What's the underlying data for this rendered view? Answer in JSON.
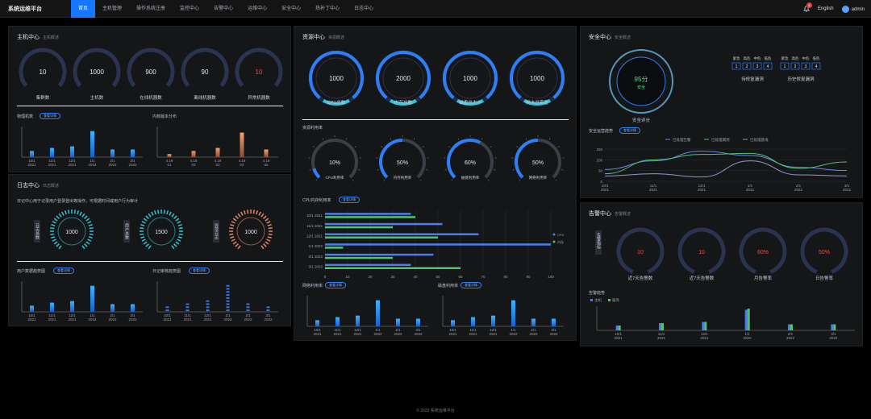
{
  "header": {
    "title": "系统运维平台",
    "nav": [
      "首页",
      "主机管理",
      "操作系统注册",
      "监控中心",
      "告警中心",
      "运维中心",
      "安全中心",
      "热补丁中心",
      "日志中心"
    ],
    "active": 0,
    "notif_count": "6",
    "lang": "English",
    "user": "admin"
  },
  "host": {
    "title": "主机中心",
    "subtitle": "主机概述",
    "gauges": [
      {
        "value": "10",
        "label": "集群数",
        "color": "#dfe6f0"
      },
      {
        "value": "1000",
        "label": "主机数",
        "color": "#dfe6f0"
      },
      {
        "value": "900",
        "label": "在线机器数",
        "color": "#dfe6f0"
      },
      {
        "value": "90",
        "label": "离线机器数",
        "color": "#dfe6f0"
      },
      {
        "value": "10",
        "label": "异常机器数",
        "color": "#e0524e"
      }
    ],
    "phys_title": "物理机数",
    "phys_btn": "查看详情",
    "kernel_title": "内核版本分布",
    "phys_x": [
      [
        "10/1",
        "2021"
      ],
      [
        "11/1",
        "2021"
      ],
      [
        "12/1",
        "2021"
      ],
      [
        "1/1",
        "2022"
      ],
      [
        "2/1",
        "2022"
      ],
      [
        "3/1",
        "2022"
      ]
    ],
    "phys_v": [
      20,
      30,
      35,
      85,
      25,
      25
    ],
    "kernel_x": [
      [
        "4.19",
        "01"
      ],
      [
        "4.19",
        "02"
      ],
      [
        "4.19",
        "03"
      ],
      [
        "4.19",
        "04"
      ],
      [
        "4.19",
        "05"
      ]
    ],
    "kernel_v": [
      10,
      20,
      30,
      80,
      25
    ]
  },
  "log": {
    "title": "日志中心",
    "subtitle": "日志概述",
    "desc": "日记中心用于记录用户登录登出等操作，可根据时间或用户行为审计",
    "rings": [
      {
        "label": "日志总数",
        "value": "1000",
        "color": "#33c4d8"
      },
      {
        "label": "用户总数",
        "value": "1500",
        "color": "#33c4d8"
      },
      {
        "label": "异常日志",
        "value": "1000",
        "color": "#e8886a"
      }
    ],
    "trend_title": "用户数据趋势图",
    "trend_btn": "查看详情",
    "audit_title": "日记审核趋势图",
    "audit_btn": "查看详情",
    "trend_x": [
      [
        "10/1",
        "2021"
      ],
      [
        "11/1",
        "2021"
      ],
      [
        "12/1",
        "2021"
      ],
      [
        "1/1",
        "2022"
      ],
      [
        "2/1",
        "2022"
      ],
      [
        "3/1",
        "2022"
      ]
    ],
    "trend_v": [
      20,
      30,
      35,
      85,
      25,
      25
    ],
    "audit_x": [
      [
        "10/1",
        "2021"
      ],
      [
        "11/1",
        "2021"
      ],
      [
        "12/1",
        "2021"
      ],
      [
        "1/1",
        "2022"
      ],
      [
        "2/1",
        "2022"
      ],
      [
        "3/1",
        "2022"
      ]
    ],
    "audit_v": [
      2,
      3,
      4,
      9,
      3,
      2
    ]
  },
  "resource": {
    "title": "资源中心",
    "subtitle": "资源概述",
    "gauges": [
      {
        "value": "1000",
        "label": "CPU总数"
      },
      {
        "value": "2000",
        "label": "内存总数"
      },
      {
        "value": "1000",
        "label": "磁盘总大小"
      },
      {
        "value": "1000",
        "label": "网卡总带宽"
      }
    ],
    "util_title": "资源利用率",
    "util": [
      {
        "value": "10%",
        "label": "CPU利用率",
        "pct": 10
      },
      {
        "value": "50%",
        "label": "内存利用率",
        "pct": 50
      },
      {
        "value": "60%",
        "label": "磁盘利用率",
        "pct": 60
      },
      {
        "value": "50%",
        "label": "网络利用率",
        "pct": 50
      }
    ],
    "bar_title": "CPU内存利用率",
    "bar_btn": "查看详情",
    "bar_legend": [
      "CPU",
      "内存"
    ],
    "bar_cats": [
      "10/1 2021",
      "11/1 2021",
      "12/1 2021",
      "1/1 2022",
      "2/1 2022",
      "3/1 2022"
    ],
    "bar_cpu": [
      38,
      52,
      68,
      100,
      48,
      38
    ],
    "bar_mem": [
      40,
      30,
      50,
      8,
      30,
      60
    ],
    "bar_ticks": [
      "0",
      "10",
      "20",
      "30",
      "40",
      "50",
      "60",
      "70",
      "80",
      "90",
      "100"
    ],
    "net_title": "网络利用率",
    "net_btn": "查看详情",
    "disk_title": "磁盘利用率",
    "disk_btn": "查看详情",
    "net_x": [
      [
        "10/1",
        "2021"
      ],
      [
        "11/1",
        "2021"
      ],
      [
        "12/1",
        "2021"
      ],
      [
        "1/1",
        "2022"
      ],
      [
        "2/1",
        "2022"
      ],
      [
        "3/1",
        "2022"
      ]
    ],
    "net_v": [
      20,
      30,
      35,
      85,
      25,
      25
    ],
    "disk_x": [
      [
        "10/1",
        "2021"
      ],
      [
        "11/1",
        "2021"
      ],
      [
        "12/1",
        "2021"
      ],
      [
        "1/1",
        "2022"
      ],
      [
        "2/1",
        "2022"
      ],
      [
        "3/1",
        "2022"
      ]
    ],
    "disk_v": [
      20,
      30,
      35,
      85,
      25,
      25
    ]
  },
  "security": {
    "title": "安全中心",
    "subtitle": "安全概述",
    "score": "95分",
    "score_label": "安全",
    "caption": "安全评分",
    "group1": {
      "heads": [
        "紧急",
        "高危",
        "中危",
        "低危"
      ],
      "vals": [
        "1",
        "2",
        "3",
        "4"
      ],
      "title": "待修复漏洞"
    },
    "group2": {
      "heads": [
        "紧急",
        "高危",
        "中危",
        "低危"
      ],
      "vals": [
        "1",
        "2",
        "3",
        "4"
      ],
      "title": "历史修复漏洞"
    },
    "trend_title": "安全运营趋势",
    "trend_btn": "查看详情",
    "legend": [
      "已处理告警",
      "已处理漏洞",
      "已处理基线"
    ],
    "yticks": [
      "0",
      "50",
      "100",
      "150"
    ],
    "x": [
      [
        "10/1",
        "2021"
      ],
      [
        "11/1",
        "2021"
      ],
      [
        "12/1",
        "2021"
      ],
      [
        "1/1",
        "2022"
      ],
      [
        "2/1",
        "2022"
      ],
      [
        "3/1",
        "2022"
      ]
    ],
    "s1": [
      55,
      95,
      140,
      120,
      65,
      50
    ],
    "s2": [
      35,
      100,
      125,
      130,
      60,
      90
    ],
    "s3": [
      25,
      35,
      20,
      95,
      30,
      25
    ]
  },
  "alarm": {
    "title": "告警中心",
    "subtitle": "告警概述",
    "vlabel": "告警指标",
    "gauges": [
      {
        "value": "10",
        "label": "近7天告警数",
        "color": "#e0524e"
      },
      {
        "value": "10",
        "label": "近7天告警数",
        "color": "#e0524e"
      },
      {
        "value": "60%",
        "label": "月告警率",
        "color": "#e0524e"
      },
      {
        "value": "50%",
        "label": "日告警率",
        "color": "#e0524e"
      }
    ],
    "trend_title": "告警趋势",
    "legend": [
      "主机",
      "服务"
    ],
    "x": [
      [
        "10/1",
        "2021"
      ],
      [
        "11/1",
        "2021"
      ],
      [
        "12/1",
        "2021"
      ],
      [
        "1/1",
        "2022"
      ],
      [
        "2/1",
        "2022"
      ],
      [
        "3/1",
        "2022"
      ]
    ],
    "a": [
      20,
      30,
      35,
      85,
      25,
      25
    ],
    "b": [
      20,
      30,
      35,
      90,
      25,
      25
    ]
  },
  "footer": "© 2023 系统运维平台"
}
